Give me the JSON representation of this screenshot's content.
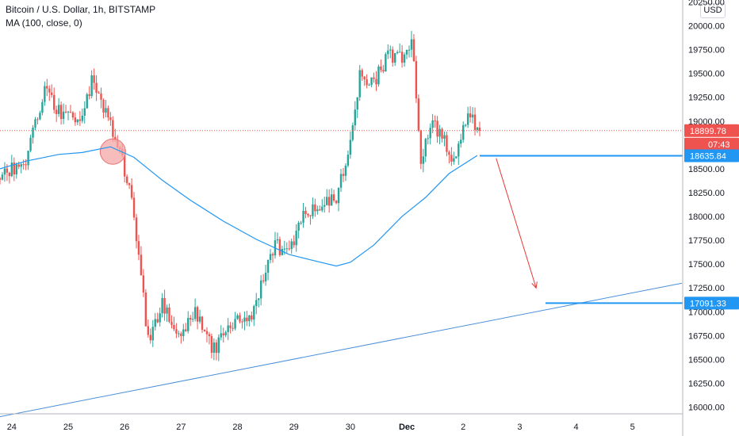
{
  "header": {
    "title": "Bitcoin / U.S. Dollar, 1h, BITSTAMP",
    "indicator": "MA (100, close, 0)",
    "currency_button": "USD"
  },
  "colors": {
    "up": "#26a69a",
    "down": "#ef5350",
    "ma_line": "#2196f3",
    "trendline": "#4a90d9",
    "arrow": "#e53935",
    "current_price_badge": "#ef5350",
    "level_badge": "#2196f3",
    "axis_text": "#131722",
    "circle_fill": "#f4a7a7",
    "circle_stroke": "#e57373"
  },
  "chart_data": {
    "type": "candlestick",
    "title": "Bitcoin / U.S. Dollar, 1h, BITSTAMP",
    "y_axis": {
      "ylim": [
        15930,
        20270
      ],
      "ticks": [
        16000,
        16250,
        16500,
        16750,
        17000,
        17250,
        17500,
        17750,
        18000,
        18250,
        18500,
        18750,
        19000,
        19250,
        19500,
        19750,
        20000,
        20250
      ],
      "tick_labels": [
        "16000.00",
        "16250.00",
        "16500.00",
        "16750.00",
        "17000.00",
        "17250.00",
        "17500.00",
        "17750.00",
        "18000.00",
        "18250.00",
        "18500.00",
        "18750.00",
        "19000.00",
        "19250.00",
        "19500.00",
        "19750.00",
        "20000.00",
        "20250.00"
      ]
    },
    "x_axis": {
      "xlim": [
        "Nov 23 19:00",
        "Dec 5 21:00"
      ],
      "ticks": [
        {
          "label": "24",
          "time": "Nov 24 00:00"
        },
        {
          "label": "25",
          "time": "Nov 25 00:00"
        },
        {
          "label": "26",
          "time": "Nov 26 00:00"
        },
        {
          "label": "27",
          "time": "Nov 27 00:00"
        },
        {
          "label": "28",
          "time": "Nov 28 00:00"
        },
        {
          "label": "29",
          "time": "Nov 29 00:00"
        },
        {
          "label": "30",
          "time": "Nov 30 00:00"
        },
        {
          "label": "Dec",
          "time": "Dec 1 00:00"
        },
        {
          "label": "2",
          "time": "Dec 2 00:00"
        },
        {
          "label": "3",
          "time": "Dec 3 00:00"
        },
        {
          "label": "4",
          "time": "Dec 4 00:00"
        },
        {
          "label": "5",
          "time": "Dec 5 00:00"
        }
      ]
    },
    "price_path": [
      {
        "time": "Nov 23 19:00",
        "price": 18400
      },
      {
        "time": "Nov 24 06:00",
        "price": 18600
      },
      {
        "time": "Nov 24 14:00",
        "price": 19350
      },
      {
        "time": "Nov 24 20:00",
        "price": 19100
      },
      {
        "time": "Nov 25 04:00",
        "price": 19000
      },
      {
        "time": "Nov 25 10:00",
        "price": 19400
      },
      {
        "time": "Nov 25 14:00",
        "price": 19200
      },
      {
        "time": "Nov 25 20:00",
        "price": 18850
      },
      {
        "time": "Nov 26 02:00",
        "price": 18300
      },
      {
        "time": "Nov 26 06:00",
        "price": 17600
      },
      {
        "time": "Nov 26 10:00",
        "price": 16700
      },
      {
        "time": "Nov 26 16:00",
        "price": 17100
      },
      {
        "time": "Nov 26 22:00",
        "price": 16700
      },
      {
        "time": "Nov 27 06:00",
        "price": 17000
      },
      {
        "time": "Nov 27 14:00",
        "price": 16600
      },
      {
        "time": "Nov 27 22:00",
        "price": 16900
      },
      {
        "time": "Nov 28 06:00",
        "price": 16950
      },
      {
        "time": "Nov 28 16:00",
        "price": 17700
      },
      {
        "time": "Nov 28 22:00",
        "price": 17600
      },
      {
        "time": "Nov 29 04:00",
        "price": 18050
      },
      {
        "time": "Nov 29 12:00",
        "price": 18100
      },
      {
        "time": "Nov 29 18:00",
        "price": 18200
      },
      {
        "time": "Nov 30 00:00",
        "price": 18800
      },
      {
        "time": "Nov 30 04:00",
        "price": 19500
      },
      {
        "time": "Nov 30 10:00",
        "price": 19400
      },
      {
        "time": "Nov 30 16:00",
        "price": 19700
      },
      {
        "time": "Nov 30 22:00",
        "price": 19650
      },
      {
        "time": "Dec 1 02:00",
        "price": 19800
      },
      {
        "time": "Dec 1 04:00",
        "price": 19300
      },
      {
        "time": "Dec 1 06:00",
        "price": 18600
      },
      {
        "time": "Dec 1 10:00",
        "price": 19000
      },
      {
        "time": "Dec 1 16:00",
        "price": 18800
      },
      {
        "time": "Dec 1 20:00",
        "price": 18600
      },
      {
        "time": "Dec 2 02:00",
        "price": 19100
      },
      {
        "time": "Dec 2 07:00",
        "price": 18900
      }
    ],
    "moving_average": {
      "name": "MA (100, close, 0)",
      "points": [
        {
          "time": "Nov 23 19:00",
          "value": 18500
        },
        {
          "time": "Nov 24 06:00",
          "value": 18580
        },
        {
          "time": "Nov 24 20:00",
          "value": 18650
        },
        {
          "time": "Nov 25 06:00",
          "value": 18670
        },
        {
          "time": "Nov 25 18:00",
          "value": 18730
        },
        {
          "time": "Nov 26 04:00",
          "value": 18620
        },
        {
          "time": "Nov 26 16:00",
          "value": 18380
        },
        {
          "time": "Nov 27 04:00",
          "value": 18170
        },
        {
          "time": "Nov 27 18:00",
          "value": 17950
        },
        {
          "time": "Nov 28 08:00",
          "value": 17760
        },
        {
          "time": "Nov 28 22:00",
          "value": 17600
        },
        {
          "time": "Nov 29 08:00",
          "value": 17540
        },
        {
          "time": "Nov 29 18:00",
          "value": 17480
        },
        {
          "time": "Nov 30 00:00",
          "value": 17520
        },
        {
          "time": "Nov 30 10:00",
          "value": 17700
        },
        {
          "time": "Nov 30 22:00",
          "value": 18000
        },
        {
          "time": "Dec 1 08:00",
          "value": 18200
        },
        {
          "time": "Dec 1 18:00",
          "value": 18450
        },
        {
          "time": "Dec 2 06:00",
          "value": 18640
        }
      ]
    },
    "trendline": {
      "from": {
        "time": "Nov 23 19:00",
        "price": 15900
      },
      "to": {
        "time": "Dec 5 21:00",
        "price": 17300
      }
    },
    "horizontal_levels": [
      {
        "price": 18635.84,
        "label": "18635.84",
        "from": "Dec 2 07:00"
      },
      {
        "price": 17091.33,
        "label": "17091.33",
        "from": "Dec 3 11:00"
      }
    ],
    "arrow": {
      "from": {
        "time": "Dec 2 14:00",
        "price": 18610
      },
      "to": {
        "time": "Dec 3 07:00",
        "price": 17250
      }
    },
    "highlight_circle": {
      "time": "Nov 25 19:00",
      "price": 18680
    },
    "current_price": {
      "value": 18899.78,
      "label": "18899.78",
      "countdown": "07:43"
    }
  }
}
